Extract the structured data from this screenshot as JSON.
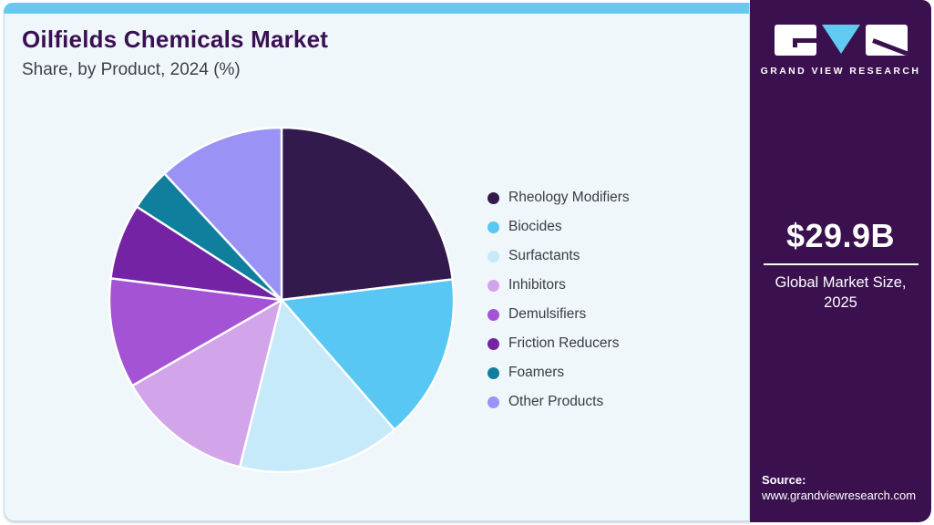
{
  "chart_data": {
    "type": "pie",
    "title": "Oilfields Chemicals Market",
    "subtitle": "Share, by Product, 2024 (%)",
    "legend_position": "right",
    "start_angle": "top, clockwise",
    "series": [
      {
        "name": "Rheology Modifiers",
        "value": 23.1,
        "color": "#331a4d"
      },
      {
        "name": "Biocides",
        "value": 15.5,
        "color": "#58c7f3"
      },
      {
        "name": "Surfactants",
        "value": 15.3,
        "color": "#c7eafa"
      },
      {
        "name": "Inhibitors",
        "value": 12.8,
        "color": "#d2a4ea"
      },
      {
        "name": "Demulsifiers",
        "value": 10.3,
        "color": "#a453d4"
      },
      {
        "name": "Friction Reducers",
        "value": 7.1,
        "color": "#7323a4"
      },
      {
        "name": "Foamers",
        "value": 4.0,
        "color": "#107f9d"
      },
      {
        "name": "Other Products",
        "value": 11.9,
        "color": "#9a93f5"
      }
    ]
  },
  "sidebar": {
    "brand": "GRAND VIEW RESEARCH",
    "market_size_value": "$29.9B",
    "market_size_label_line1": "Global Market Size,",
    "market_size_label_line2": "2025",
    "source_label": "Source:",
    "source_url": "www.grandviewresearch.com"
  },
  "colors": {
    "accent_bar": "#68c9f0",
    "panel_bg": "#eff7fb",
    "sidebar_bg": "#3a114e",
    "title": "#3a1053",
    "body_text": "#3b3c42"
  }
}
